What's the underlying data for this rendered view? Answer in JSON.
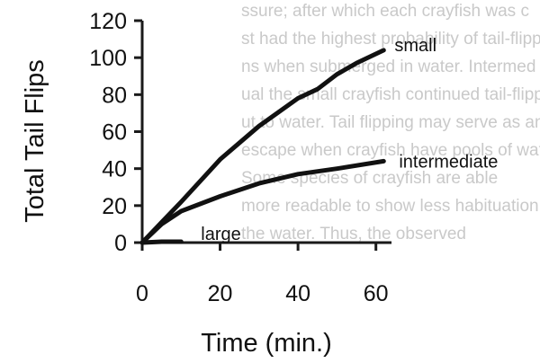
{
  "background_text": [
    "ssure; after which each crayfish was c",
    "st had the highest probability of tail-flipping",
    "ns when submerged in water. Intermed",
    "ual the small crayfish continued tail-flipping",
    "ut to water. Tail flipping may serve as an esc",
    "escape when crayfish have pools of water",
    "Some species of crayfish are able",
    "more readable to show less habituation o",
    "the water. Thus, the observed"
  ],
  "chart_data": {
    "type": "line",
    "title": "",
    "xlabel": "Time (min.)",
    "ylabel": "Total Tail Flips",
    "xlim": [
      0,
      64
    ],
    "ylim": [
      0,
      120
    ],
    "x_ticks": [
      0,
      20,
      40,
      60
    ],
    "y_ticks": [
      0,
      20,
      40,
      60,
      80,
      100,
      120
    ],
    "grid": false,
    "legend": "none",
    "series": [
      {
        "name": "small",
        "x": [
          0,
          5,
          10,
          20,
          30,
          40,
          45,
          50,
          55,
          62
        ],
        "y": [
          0,
          11,
          22,
          45,
          63,
          78,
          83,
          91,
          97,
          104
        ]
      },
      {
        "name": "intermediate",
        "x": [
          0,
          5,
          10,
          20,
          30,
          40,
          50,
          62
        ],
        "y": [
          0,
          10,
          17,
          25,
          32,
          37,
          40,
          44
        ]
      },
      {
        "name": "large",
        "x": [
          0,
          5,
          10
        ],
        "y": [
          0,
          0.5,
          0.5
        ]
      }
    ]
  }
}
